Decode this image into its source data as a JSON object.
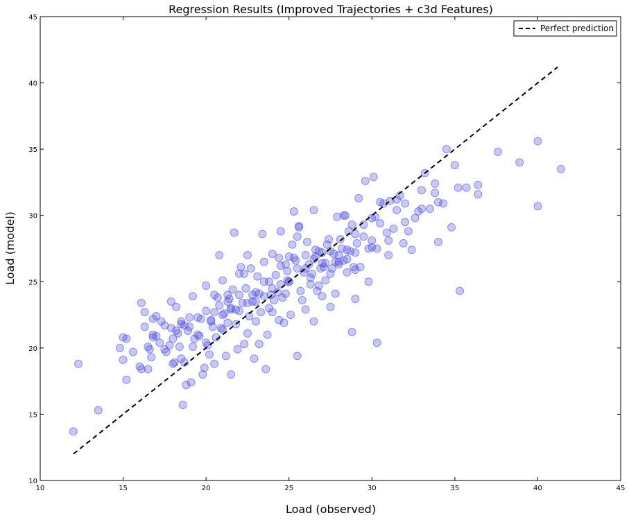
{
  "chart_data": {
    "type": "scatter",
    "title": "Regression Results (Improved Trajectories + c3d Features)",
    "xlabel": "Load (observed)",
    "ylabel": "Load (model)",
    "xlim": [
      10,
      45
    ],
    "ylim": [
      10,
      45
    ],
    "xticks": [
      10,
      15,
      20,
      25,
      30,
      35,
      40,
      45
    ],
    "yticks": [
      10,
      15,
      20,
      25,
      30,
      35,
      40,
      45
    ],
    "grid": false,
    "legend_position": "top-right",
    "colors": {
      "points": "#4a4adc",
      "reference_line": "#000000"
    },
    "series": [
      {
        "type": "scatter",
        "x": [
          12.0,
          12.3,
          13.5,
          14.8,
          15.0,
          15.0,
          15.2,
          15.2,
          16.0,
          16.1,
          16.1,
          16.3,
          16.3,
          16.5,
          16.6,
          16.7,
          16.8,
          16.8,
          17.0,
          17.2,
          17.3,
          17.5,
          17.6,
          17.8,
          17.9,
          17.9,
          18.0,
          18.0,
          18.1,
          18.2,
          18.3,
          18.4,
          18.5,
          18.5,
          18.6,
          18.7,
          18.7,
          18.8,
          18.9,
          19.0,
          19.1,
          19.2,
          19.3,
          19.5,
          19.6,
          19.7,
          19.8,
          19.9,
          20.0,
          20.0,
          20.0,
          20.1,
          20.2,
          20.3,
          20.4,
          20.5,
          20.5,
          20.6,
          20.7,
          20.8,
          20.9,
          21.0,
          21.0,
          21.1,
          21.2,
          21.3,
          21.3,
          21.4,
          21.5,
          21.5,
          21.6,
          21.7,
          21.8,
          21.9,
          22.0,
          22.0,
          22.1,
          22.2,
          22.3,
          22.4,
          22.5,
          22.5,
          22.6,
          22.7,
          22.8,
          22.9,
          23.0,
          23.0,
          23.1,
          23.2,
          23.3,
          23.4,
          23.5,
          23.5,
          23.6,
          23.7,
          23.8,
          23.9,
          24.0,
          24.0,
          24.1,
          24.2,
          24.3,
          24.4,
          24.5,
          24.5,
          24.6,
          24.7,
          24.8,
          24.9,
          25.0,
          25.0,
          25.1,
          25.2,
          25.3,
          25.4,
          25.5,
          25.5,
          25.6,
          25.7,
          25.8,
          25.9,
          26.0,
          26.0,
          26.1,
          26.2,
          26.3,
          26.4,
          26.5,
          26.5,
          26.6,
          26.7,
          26.8,
          26.9,
          27.0,
          27.0,
          27.1,
          27.2,
          27.3,
          27.4,
          27.5,
          27.5,
          27.6,
          27.7,
          27.8,
          27.9,
          28.0,
          28.0,
          28.1,
          28.2,
          28.3,
          28.4,
          28.5,
          28.5,
          28.6,
          28.7,
          28.8,
          28.9,
          29.0,
          29.0,
          29.1,
          29.2,
          29.3,
          29.5,
          29.6,
          29.8,
          30.0,
          30.0,
          30.1,
          30.2,
          30.3,
          30.5,
          30.7,
          30.9,
          31.0,
          31.1,
          31.3,
          31.5,
          31.7,
          31.9,
          32.0,
          32.2,
          32.4,
          32.6,
          32.8,
          33.0,
          33.2,
          33.5,
          33.8,
          34.0,
          34.3,
          34.5,
          34.8,
          35.0,
          35.3,
          35.7,
          36.4,
          37.6,
          38.9,
          40.0,
          40.0,
          41.4,
          17.0,
          19.0,
          21.0,
          23.0,
          25.0,
          27.0,
          29.0,
          31.0,
          22.5,
          24.5,
          26.5,
          28.5,
          21.5,
          23.5,
          25.5,
          27.5,
          29.5,
          20.5,
          30.5,
          24.0,
          26.0,
          28.0,
          22.0,
          19.5,
          17.5,
          16.5,
          18.5,
          32.0,
          33.0,
          34.0,
          31.5,
          30.0,
          25.6,
          26.8,
          21.8,
          23.2,
          24.8,
          27.2,
          22.8,
          20.8,
          19.2,
          18.2,
          16.8,
          15.6,
          28.8,
          29.8,
          33.8,
          36.4,
          35.2,
          30.3,
          29.0,
          24.4,
          21.3,
          23.8,
          25.3,
          26.3,
          27.8,
          22.3,
          20.3,
          24.9,
          26.6,
          28.3
        ],
        "y": [
          13.7,
          18.8,
          15.3,
          20.0,
          20.8,
          19.1,
          17.6,
          20.7,
          18.6,
          18.4,
          23.4,
          21.6,
          22.7,
          18.4,
          19.9,
          19.3,
          20.8,
          21.0,
          20.9,
          20.4,
          22.0,
          21.7,
          19.7,
          20.2,
          23.5,
          21.5,
          18.8,
          20.7,
          18.9,
          23.1,
          21.1,
          20.1,
          19.2,
          22.0,
          15.7,
          21.7,
          18.9,
          17.2,
          21.3,
          22.3,
          17.4,
          20.1,
          20.7,
          22.3,
          20.9,
          22.2,
          18.0,
          18.5,
          20.4,
          22.8,
          24.7,
          20.2,
          19.5,
          22.1,
          21.6,
          24.0,
          18.8,
          20.8,
          23.8,
          27.0,
          21.5,
          21.4,
          25.1,
          22.6,
          19.4,
          21.9,
          23.5,
          23.7,
          18.0,
          22.9,
          24.4,
          28.7,
          21.8,
          19.9,
          22.8,
          25.6,
          26.1,
          23.4,
          20.3,
          24.5,
          27.0,
          21.1,
          22.4,
          26.0,
          23.5,
          19.2,
          24.2,
          22.0,
          25.4,
          20.3,
          22.7,
          28.6,
          23.9,
          26.5,
          18.4,
          21.0,
          25.0,
          24.0,
          27.1,
          22.7,
          23.6,
          25.5,
          24.2,
          22.1,
          26.2,
          28.8,
          23.8,
          21.9,
          24.1,
          25.1,
          25.0,
          26.9,
          22.5,
          27.8,
          30.3,
          26.6,
          19.4,
          28.4,
          29.1,
          24.3,
          23.6,
          25.7,
          22.9,
          27.0,
          28.0,
          26.3,
          24.8,
          25.6,
          30.4,
          22.0,
          26.9,
          24.3,
          27.3,
          26.0,
          27.2,
          23.9,
          26.1,
          25.1,
          27.8,
          28.2,
          25.6,
          23.1,
          26.0,
          27.1,
          24.1,
          29.9,
          26.5,
          26.3,
          28.2,
          27.5,
          26.6,
          30.0,
          26.7,
          25.7,
          28.8,
          27.3,
          29.3,
          26.1,
          25.9,
          28.6,
          27.9,
          31.3,
          26.1,
          29.3,
          32.6,
          27.5,
          29.8,
          28.1,
          32.9,
          29.9,
          27.5,
          31.0,
          30.9,
          28.7,
          27.0,
          31.1,
          29.0,
          30.4,
          31.5,
          27.9,
          30.9,
          28.8,
          27.4,
          29.8,
          30.3,
          31.9,
          33.2,
          30.5,
          32.4,
          28.0,
          30.9,
          35.0,
          29.1,
          33.8,
          24.3,
          32.1,
          32.3,
          34.8,
          34.0,
          30.7,
          35.6,
          33.5,
          22.4,
          21.6,
          22.5,
          23.5,
          25.0,
          26.4,
          27.2,
          28.1,
          23.4,
          24.8,
          26.7,
          27.4,
          23.0,
          25.0,
          26.0,
          27.3,
          28.4,
          22.7,
          29.4,
          24.5,
          26.0,
          27.0,
          24.0,
          21.0,
          19.9,
          20.1,
          21.8,
          29.5,
          30.5,
          31.0,
          31.2,
          27.6,
          29.2,
          24.7,
          22.9,
          24.1,
          26.3,
          26.4,
          24.0,
          23.2,
          23.9,
          21.3,
          22.2,
          19.7,
          21.2,
          25.0,
          31.7,
          31.6,
          32.1,
          20.4,
          23.7,
          26.8,
          24.0,
          23.0,
          26.8,
          25.3,
          26.5,
          25.6,
          22.0,
          25.8,
          27.4,
          30.0
        ]
      },
      {
        "type": "line",
        "name": "Perfect prediction",
        "x": [
          12.0,
          41.2
        ],
        "y": [
          12.0,
          41.2
        ]
      }
    ]
  }
}
